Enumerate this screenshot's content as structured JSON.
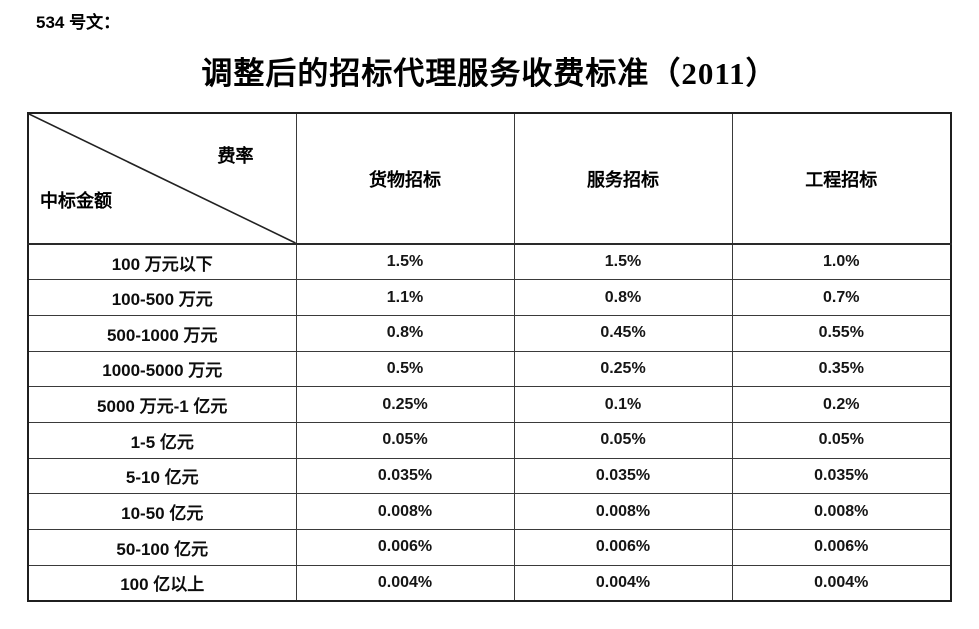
{
  "doc_label": "534 号文：",
  "title": "调整后的招标代理服务收费标准（2011）",
  "table": {
    "corner": {
      "top_right": "费率",
      "bottom_left": "中标金额"
    },
    "columns": [
      "货物招标",
      "服务招标",
      "工程招标"
    ],
    "rows": [
      {
        "label": "100 万元以下",
        "values": [
          "1.5%",
          "1.5%",
          "1.0%"
        ]
      },
      {
        "label": "100-500 万元",
        "values": [
          "1.1%",
          "0.8%",
          "0.7%"
        ]
      },
      {
        "label": "500-1000 万元",
        "values": [
          "0.8%",
          "0.45%",
          "0.55%"
        ]
      },
      {
        "label": "1000-5000 万元",
        "values": [
          "0.5%",
          "0.25%",
          "0.35%"
        ]
      },
      {
        "label": "5000 万元-1 亿元",
        "values": [
          "0.25%",
          "0.1%",
          "0.2%"
        ]
      },
      {
        "label": "1-5 亿元",
        "values": [
          "0.05%",
          "0.05%",
          "0.05%"
        ]
      },
      {
        "label": "5-10 亿元",
        "values": [
          "0.035%",
          "0.035%",
          "0.035%"
        ]
      },
      {
        "label": "10-50 亿元",
        "values": [
          "0.008%",
          "0.008%",
          "0.008%"
        ]
      },
      {
        "label": "50-100 亿元",
        "values": [
          "0.006%",
          "0.006%",
          "0.006%"
        ]
      },
      {
        "label": "100 亿以上",
        "values": [
          "0.004%",
          "0.004%",
          "0.004%"
        ]
      }
    ]
  },
  "colors": {
    "text": "#000000",
    "border_inner": "#3a3a3a",
    "border_outer": "#1f1f1f",
    "background": "#ffffff"
  }
}
